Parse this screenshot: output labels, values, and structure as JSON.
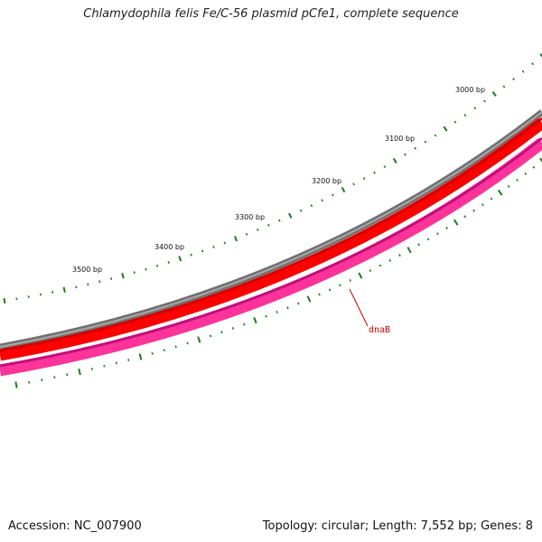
{
  "title": "Chlamydophila felis Fe/C-56 plasmid pCfe1, complete sequence",
  "accession_text": "Accession: NC_007900",
  "summary_text": "Topology: circular; Length: 7,552 bp; Genes: 8",
  "sequence": {
    "length_bp": 7552,
    "topology": "circular",
    "gene_count": 8
  },
  "tick_labels": [
    {
      "label": "3000 bp",
      "bp": 3000
    },
    {
      "label": "3100 bp",
      "bp": 3100
    },
    {
      "label": "3200 bp",
      "bp": 3200
    },
    {
      "label": "3300 bp",
      "bp": 3300
    },
    {
      "label": "3400 bp",
      "bp": 3400
    },
    {
      "label": "3500 bp",
      "bp": 3500
    }
  ],
  "tracks": [
    {
      "name": "backbone",
      "color": "#808080"
    },
    {
      "name": "forward-strand-cds",
      "color": "#ff0000"
    },
    {
      "name": "reverse-strand-cds",
      "color": "#ff3399"
    }
  ],
  "genes": [
    {
      "name": "dnaB",
      "label": "dnaB",
      "strand": "reverse",
      "color": "#cc0000"
    }
  ],
  "colors": {
    "ticks": "#1e7a1e",
    "backbone": "#808080",
    "forward_cds": "#ff0000",
    "reverse_cds": "#ff3399",
    "gene_label": "#cc0000"
  }
}
